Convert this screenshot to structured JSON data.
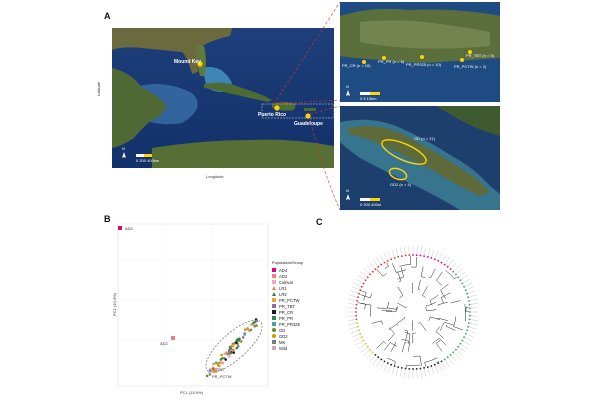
{
  "panels": {
    "a_letter": "A",
    "b_letter": "B",
    "c_letter": "C"
  },
  "map_main": {
    "labels": {
      "mound_key": "Mound Key",
      "puerto_rico": "Puerto Rico",
      "guadeloupe": "Guadeloupe"
    },
    "axis_x": "Longitude",
    "axis_y": "Latitude",
    "scale_label": "0   200   400km",
    "north": "N"
  },
  "map_pr": {
    "sites": [
      {
        "label": "PR_CR (n = 15)"
      },
      {
        "label": "PR_PR (n = 6)"
      },
      {
        "label": "PR_PR325 (n = 10)"
      },
      {
        "label": "PR_TBT (n = 5)"
      },
      {
        "label": "PR_PCTW (n = 2)"
      }
    ],
    "scale_label": "0   5   10km",
    "north": "N"
  },
  "map_gd": {
    "sites": [
      {
        "label": "GD (n = 21)"
      },
      {
        "label": "GD2 (n = 4)"
      }
    ],
    "scale_label": "0   200   400m",
    "north": "N"
  },
  "pca": {
    "xlabel": "PC1 (15.9%)",
    "ylabel": "PC2 (10.4%)",
    "annotations": {
      "ad4": "AD4",
      "ad2": "AD2",
      "pr_tbt": "PR_TBT",
      "pr_pctw": "PR_PCTW"
    },
    "legend_title": "Population/Group",
    "legend": [
      {
        "label": "AD4",
        "color": "#e0007a",
        "shape": "square"
      },
      {
        "label": "AD2",
        "color": "#f08080",
        "shape": "square"
      },
      {
        "label": "Cultivar",
        "color": "#f4a6b4",
        "shape": "square"
      },
      {
        "label": "LR1",
        "color": "#f28c28",
        "shape": "triangle"
      },
      {
        "label": "LR2",
        "color": "#3a7d44",
        "shape": "triangle"
      },
      {
        "label": "PR_PCTW",
        "color": "#e8a33d",
        "shape": "square"
      },
      {
        "label": "PR_TBT",
        "color": "#8c6bb1",
        "shape": "square"
      },
      {
        "label": "PR_CR",
        "color": "#1b1b1b",
        "shape": "square"
      },
      {
        "label": "PR_PR",
        "color": "#2e8b57",
        "shape": "square"
      },
      {
        "label": "PR_PR325",
        "color": "#4aa3a0",
        "shape": "square"
      },
      {
        "label": "GD",
        "color": "#6b8e23",
        "shape": "circle"
      },
      {
        "label": "GD2",
        "color": "#c0a000",
        "shape": "circle"
      },
      {
        "label": "MK",
        "color": "#7a7a7a",
        "shape": "square"
      },
      {
        "label": "Wild",
        "color": "#d9a0c0",
        "shape": "square"
      }
    ]
  },
  "tree": {
    "branch_colors": [
      "#e0007a",
      "#3aa655",
      "#1b1b1b",
      "#d0c020"
    ]
  }
}
